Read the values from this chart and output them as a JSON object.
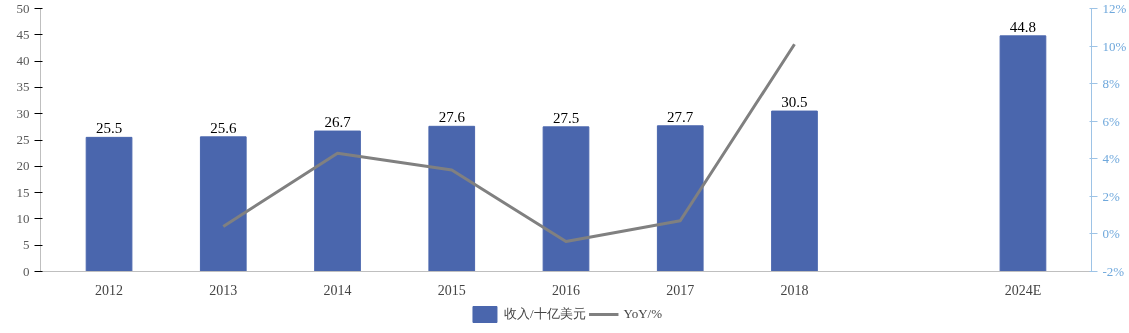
{
  "chart_data": {
    "type": "bar",
    "categories": [
      "2012",
      "2013",
      "2014",
      "2015",
      "2016",
      "2017",
      "2018",
      null,
      "2024E"
    ],
    "series": [
      {
        "name": "收入/十亿美元",
        "color": "#4a66ad",
        "values": [
          25.5,
          25.6,
          26.7,
          27.6,
          27.5,
          27.7,
          30.5,
          null,
          44.8
        ],
        "value_labels": [
          "25.5",
          "25.6",
          "26.7",
          "27.6",
          "27.5",
          "27.7",
          "30.5",
          null,
          "44.8"
        ]
      },
      {
        "name": "YoY/%",
        "type": "line",
        "axis": "y2",
        "color": "#808080",
        "values": [
          null,
          0.4,
          4.3,
          3.4,
          -0.4,
          0.7,
          10.1,
          null,
          null
        ]
      }
    ],
    "ylim": [
      0,
      50
    ],
    "yticks": [
      0,
      5,
      10,
      15,
      20,
      25,
      30,
      35,
      40,
      45,
      50
    ],
    "y2lim": [
      -2,
      12
    ],
    "y2ticks": [
      {
        "value": -2,
        "label": "-2%"
      },
      {
        "value": 0,
        "label": "0%"
      },
      {
        "value": 2,
        "label": "2%"
      },
      {
        "value": 4,
        "label": "4%"
      },
      {
        "value": 6,
        "label": "6%"
      },
      {
        "value": 8,
        "label": "8%"
      },
      {
        "value": 10,
        "label": "10%"
      },
      {
        "value": 12,
        "label": "12%"
      }
    ],
    "legend": "bottom",
    "grid": false
  }
}
